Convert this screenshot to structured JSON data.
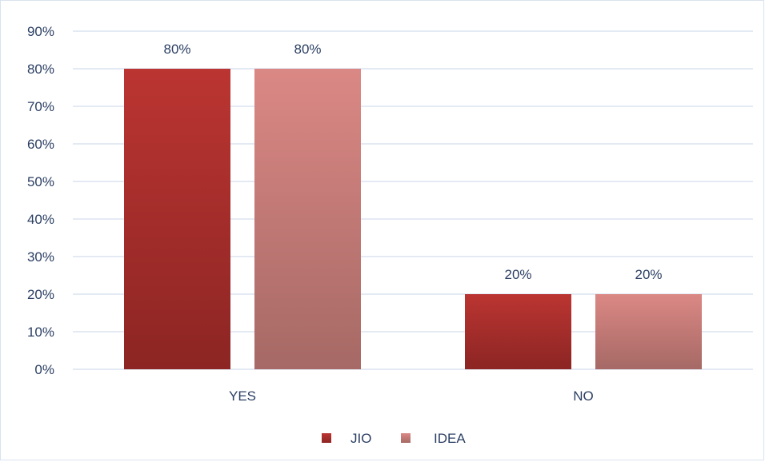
{
  "chart_data": {
    "type": "bar",
    "categories": [
      "YES",
      "NO"
    ],
    "series": [
      {
        "name": "JIO",
        "values": [
          80,
          20
        ],
        "color": "#a7302c"
      },
      {
        "name": "IDEA",
        "values": [
          80,
          20
        ],
        "color": "#c97373"
      }
    ],
    "data_labels": [
      [
        "80%",
        "20%"
      ],
      [
        "80%",
        "20%"
      ]
    ],
    "ylim": [
      0,
      90
    ],
    "yticks": [
      0,
      10,
      20,
      30,
      40,
      50,
      60,
      70,
      80,
      90
    ],
    "ytick_labels": [
      "0%",
      "10%",
      "20%",
      "30%",
      "40%",
      "50%",
      "60%",
      "70%",
      "80%",
      "90%"
    ],
    "title": "",
    "xlabel": "",
    "ylabel": "",
    "grid": true,
    "legend_position": "bottom"
  }
}
